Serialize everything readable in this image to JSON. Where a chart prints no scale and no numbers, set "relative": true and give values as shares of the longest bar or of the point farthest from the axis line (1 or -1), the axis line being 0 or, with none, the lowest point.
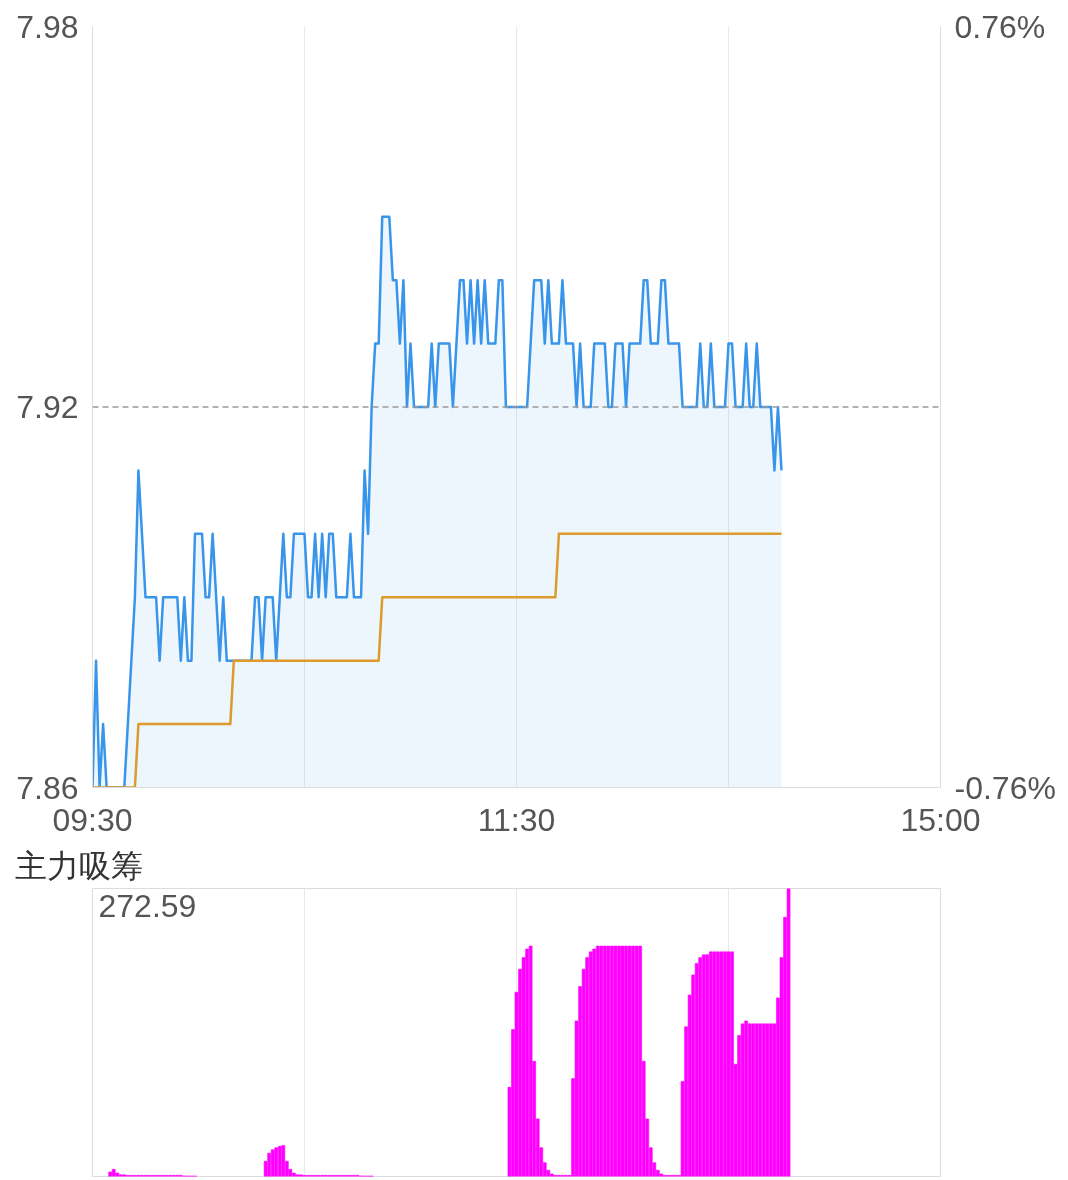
{
  "chart_data": [
    {
      "type": "area",
      "categories": [
        "09:30",
        null,
        null,
        null,
        null,
        null,
        null,
        null,
        null,
        null,
        null,
        null,
        null,
        null,
        null,
        null,
        null,
        null,
        null,
        null,
        null,
        null,
        null,
        null,
        null,
        null,
        null,
        null,
        null,
        null,
        null,
        null,
        null,
        null,
        null,
        null,
        null,
        null,
        null,
        null,
        null,
        null,
        null,
        null,
        null,
        null,
        null,
        null,
        null,
        null,
        null,
        null,
        null,
        null,
        null,
        null,
        null,
        null,
        null,
        null,
        null,
        null,
        null,
        null,
        null,
        null,
        null,
        null,
        null,
        null,
        null,
        null,
        null,
        null,
        null,
        null,
        null,
        null,
        null,
        null,
        null,
        null,
        null,
        null,
        null,
        null,
        null,
        null,
        null,
        null,
        null,
        null,
        null,
        null,
        null,
        null,
        null,
        null,
        null,
        null,
        null,
        null,
        null,
        null,
        null,
        null,
        null,
        null,
        null,
        null,
        null,
        null,
        null,
        null,
        null,
        null,
        null,
        null,
        null,
        null,
        "11:30",
        null,
        null,
        null,
        null,
        null,
        null,
        null,
        null,
        null,
        null,
        null,
        null,
        null,
        null,
        null,
        null,
        null,
        null,
        null,
        null,
        null,
        null,
        null,
        null,
        null,
        null,
        null,
        null,
        null,
        null,
        null,
        null,
        null,
        null,
        null,
        null,
        null,
        null,
        null,
        null,
        null,
        null,
        null,
        null,
        null,
        null,
        null,
        null,
        null,
        null,
        null,
        null,
        null,
        null,
        null,
        null,
        null,
        null,
        null,
        null,
        null,
        null,
        null,
        null,
        null,
        null,
        null,
        null,
        null,
        null,
        null,
        null,
        null,
        null,
        null,
        null,
        null,
        null,
        null,
        null,
        null,
        null,
        null,
        null,
        null,
        null,
        null,
        null,
        null,
        null,
        null,
        null,
        null,
        null,
        null,
        null,
        null,
        null,
        null,
        null,
        null,
        null,
        null,
        null,
        null,
        null,
        null,
        null,
        null,
        null,
        null,
        null,
        null,
        null,
        null,
        null,
        null,
        null,
        null,
        "15:00"
      ],
      "ylim": [
        7.86,
        7.98
      ],
      "yticks": [
        7.86,
        7.92,
        7.98
      ],
      "y2lim": [
        -0.76,
        0.76
      ],
      "y2ticks": [
        {
          "value": -0.76,
          "label": "-0.76%"
        },
        {
          "value": 0.76,
          "label": "0.76%"
        }
      ],
      "grid": true,
      "ref_lines": [
        {
          "axis": "y",
          "value": 7.92,
          "color": "#999999",
          "line_style": "dashed"
        }
      ],
      "series": [
        {
          "color": "#3895ea",
          "values": [
            7.86,
            7.88,
            7.86,
            7.87,
            7.86,
            7.86,
            7.86,
            7.86,
            7.86,
            7.86,
            7.87,
            7.88,
            7.89,
            7.91,
            7.9,
            7.89,
            7.89,
            7.89,
            7.89,
            7.88,
            7.89,
            7.89,
            7.89,
            7.89,
            7.89,
            7.88,
            7.89,
            7.88,
            7.88,
            7.9,
            7.9,
            7.9,
            7.89,
            7.89,
            7.9,
            7.89,
            7.88,
            7.89,
            7.88,
            7.88,
            7.88,
            7.88,
            7.88,
            7.88,
            7.88,
            7.88,
            7.89,
            7.89,
            7.88,
            7.89,
            7.89,
            7.89,
            7.88,
            7.89,
            7.9,
            7.89,
            7.89,
            7.9,
            7.9,
            7.9,
            7.9,
            7.89,
            7.89,
            7.9,
            7.89,
            7.9,
            7.89,
            7.9,
            7.9,
            7.89,
            7.89,
            7.89,
            7.89,
            7.9,
            7.89,
            7.89,
            7.89,
            7.91,
            7.9,
            7.92,
            7.93,
            7.93,
            7.95,
            7.95,
            7.95,
            7.94,
            7.94,
            7.93,
            7.94,
            7.92,
            7.93,
            7.92,
            7.92,
            7.92,
            7.92,
            7.92,
            7.93,
            7.92,
            7.93,
            7.93,
            7.93,
            7.93,
            7.92,
            7.93,
            7.94,
            7.94,
            7.93,
            7.94,
            7.93,
            7.94,
            7.93,
            7.94,
            7.93,
            7.93,
            7.93,
            7.94,
            7.94,
            7.92,
            7.92,
            7.92,
            7.92,
            7.92,
            7.92,
            7.92,
            7.93,
            7.94,
            7.94,
            7.94,
            7.93,
            7.94,
            7.93,
            7.93,
            7.93,
            7.94,
            7.93,
            7.93,
            7.93,
            7.92,
            7.93,
            7.92,
            7.92,
            7.92,
            7.93,
            7.93,
            7.93,
            7.93,
            7.92,
            7.92,
            7.93,
            7.93,
            7.93,
            7.92,
            7.93,
            7.93,
            7.93,
            7.93,
            7.94,
            7.94,
            7.93,
            7.93,
            7.93,
            7.94,
            7.94,
            7.93,
            7.93,
            7.93,
            7.93,
            7.92,
            7.92,
            7.92,
            7.92,
            7.92,
            7.93,
            7.92,
            7.92,
            7.93,
            7.92,
            7.92,
            7.92,
            7.92,
            7.93,
            7.93,
            7.92,
            7.92,
            7.92,
            7.93,
            7.92,
            7.92,
            7.93,
            7.92,
            7.92,
            7.92,
            7.92,
            7.91,
            7.92,
            7.91,
            null,
            null,
            null,
            null,
            null,
            null,
            null,
            null,
            null,
            null,
            null,
            null,
            null,
            null,
            null,
            null,
            null,
            null,
            null,
            null,
            null,
            null,
            null,
            null,
            null,
            null,
            null,
            null,
            null,
            null,
            null,
            null,
            null,
            null,
            null,
            null,
            null,
            null,
            null,
            null,
            null,
            null,
            null,
            null,
            null
          ]
        },
        {
          "type": "line",
          "color": "#dc9b2c",
          "values": [
            7.86,
            7.86,
            7.86,
            7.86,
            7.86,
            7.86,
            7.86,
            7.86,
            7.86,
            7.86,
            7.86,
            7.86,
            7.86,
            7.87,
            7.87,
            7.87,
            7.87,
            7.87,
            7.87,
            7.87,
            7.87,
            7.87,
            7.87,
            7.87,
            7.87,
            7.87,
            7.87,
            7.87,
            7.87,
            7.87,
            7.87,
            7.87,
            7.87,
            7.87,
            7.87,
            7.87,
            7.87,
            7.87,
            7.87,
            7.87,
            7.88,
            7.88,
            7.88,
            7.88,
            7.88,
            7.88,
            7.88,
            7.88,
            7.88,
            7.88,
            7.88,
            7.88,
            7.88,
            7.88,
            7.88,
            7.88,
            7.88,
            7.88,
            7.88,
            7.88,
            7.88,
            7.88,
            7.88,
            7.88,
            7.88,
            7.88,
            7.88,
            7.88,
            7.88,
            7.88,
            7.88,
            7.88,
            7.88,
            7.88,
            7.88,
            7.88,
            7.88,
            7.88,
            7.88,
            7.88,
            7.88,
            7.88,
            7.89,
            7.89,
            7.89,
            7.89,
            7.89,
            7.89,
            7.89,
            7.89,
            7.89,
            7.89,
            7.89,
            7.89,
            7.89,
            7.89,
            7.89,
            7.89,
            7.89,
            7.89,
            7.89,
            7.89,
            7.89,
            7.89,
            7.89,
            7.89,
            7.89,
            7.89,
            7.89,
            7.89,
            7.89,
            7.89,
            7.89,
            7.89,
            7.89,
            7.89,
            7.89,
            7.89,
            7.89,
            7.89,
            7.89,
            7.89,
            7.89,
            7.89,
            7.89,
            7.89,
            7.89,
            7.89,
            7.89,
            7.89,
            7.89,
            7.89,
            7.9,
            7.9,
            7.9,
            7.9,
            7.9,
            7.9,
            7.9,
            7.9,
            7.9,
            7.9,
            7.9,
            7.9,
            7.9,
            7.9,
            7.9,
            7.9,
            7.9,
            7.9,
            7.9,
            7.9,
            7.9,
            7.9,
            7.9,
            7.9,
            7.9,
            7.9,
            7.9,
            7.9,
            7.9,
            7.9,
            7.9,
            7.9,
            7.9,
            7.9,
            7.9,
            7.9,
            7.9,
            7.9,
            7.9,
            7.9,
            7.9,
            7.9,
            7.9,
            7.9,
            7.9,
            7.9,
            7.9,
            7.9,
            7.9,
            7.9,
            7.9,
            7.9,
            7.9,
            7.9,
            7.9,
            7.9,
            7.9,
            7.9,
            7.9,
            7.9,
            7.9,
            7.9,
            7.9,
            7.9,
            null,
            null,
            null,
            null,
            null,
            null,
            null,
            null,
            null,
            null,
            null,
            null,
            null,
            null,
            null,
            null,
            null,
            null,
            null,
            null,
            null,
            null,
            null,
            null,
            null,
            null,
            null,
            null,
            null,
            null,
            null,
            null,
            null,
            null,
            null,
            null,
            null,
            null,
            null,
            null,
            null,
            null,
            null,
            null,
            null
          ]
        }
      ]
    },
    {
      "type": "bar",
      "title": "主力吸筹",
      "relative": true,
      "categories": [
        null,
        null,
        null,
        null,
        null,
        null,
        null,
        null,
        null,
        null,
        null,
        null,
        null,
        null,
        null,
        null,
        null,
        null,
        null,
        null,
        null,
        null,
        null,
        null,
        null,
        null,
        null,
        null,
        null,
        null,
        null,
        null,
        null,
        null,
        null,
        null,
        null,
        null,
        null,
        null,
        null,
        null,
        null,
        null,
        null,
        null,
        null,
        null,
        null,
        null,
        null,
        null,
        null,
        null,
        null,
        null,
        null,
        null,
        null,
        null,
        null,
        null,
        null,
        null,
        null,
        null,
        null,
        null,
        null,
        null,
        null,
        null,
        null,
        null,
        null,
        null,
        null,
        null,
        null,
        null,
        null,
        null,
        null,
        null,
        null,
        null,
        null,
        null,
        null,
        null,
        null,
        null,
        null,
        null,
        null,
        null,
        null,
        null,
        null,
        null,
        null,
        null,
        null,
        null,
        null,
        null,
        null,
        null,
        null,
        null,
        null,
        null,
        null,
        null,
        null,
        null,
        null,
        null,
        null,
        null,
        null,
        null,
        null,
        null,
        null,
        null,
        null,
        null,
        null,
        null,
        null,
        null,
        null,
        null,
        null,
        null,
        null,
        null,
        null,
        null,
        null,
        null,
        null,
        null,
        null,
        null,
        null,
        null,
        null,
        null,
        null,
        null,
        null,
        null,
        null,
        null,
        null,
        null,
        null,
        null,
        null,
        null,
        null,
        null,
        null,
        null,
        null,
        null,
        null,
        null,
        null,
        null,
        null,
        null,
        null,
        null,
        null,
        null,
        null,
        null,
        null,
        null,
        null,
        null,
        null,
        null,
        null,
        null,
        null,
        null,
        null,
        null,
        null,
        null,
        null,
        null,
        null,
        null,
        null,
        null,
        null,
        null,
        null,
        null,
        null,
        null,
        null,
        null,
        null,
        null,
        null,
        null,
        null,
        null,
        null,
        null,
        null,
        null,
        null,
        null,
        null,
        null,
        null,
        null,
        null,
        null,
        null,
        null,
        null,
        null,
        null,
        null,
        null,
        null,
        null,
        null,
        null,
        null,
        null,
        null,
        null
      ],
      "tick_labels": false,
      "grid": "x",
      "annotations": [
        "272.59"
      ],
      "color": "#ff00ff",
      "values": [
        null,
        null,
        null,
        null,
        null,
        0.016,
        0.025,
        0.012,
        0.006,
        0.006,
        0.004,
        0.004,
        0.004,
        0.004,
        0.004,
        0.004,
        0.004,
        0.004,
        0.004,
        0.004,
        0.004,
        0.004,
        0.004,
        0.004,
        0.004,
        0.004,
        0.002,
        0.002,
        0.002,
        0.002,
        null,
        null,
        null,
        null,
        null,
        null,
        null,
        null,
        null,
        null,
        null,
        null,
        null,
        null,
        null,
        null,
        null,
        null,
        null,
        0.053,
        0.081,
        0.093,
        0.1,
        0.105,
        0.108,
        0.053,
        0.025,
        0.012,
        0.006,
        0.006,
        0.004,
        0.004,
        0.004,
        0.004,
        0.004,
        0.004,
        0.004,
        0.004,
        0.004,
        0.004,
        0.004,
        0.004,
        0.004,
        0.004,
        0.004,
        0.004,
        0.002,
        0.002,
        0.002,
        0.002,
        null,
        null,
        null,
        null,
        null,
        null,
        null,
        null,
        null,
        null,
        null,
        null,
        null,
        null,
        null,
        null,
        null,
        null,
        null,
        null,
        null,
        null,
        null,
        null,
        null,
        null,
        null,
        null,
        null,
        null,
        null,
        null,
        null,
        null,
        null,
        null,
        null,
        null,
        0.31,
        0.51,
        0.64,
        0.72,
        0.76,
        0.79,
        0.8,
        0.4,
        0.2,
        0.1,
        0.048,
        0.022,
        0.009,
        0.004,
        0.004,
        0.004,
        0.004,
        0.004,
        0.34,
        0.54,
        0.66,
        0.72,
        0.76,
        0.78,
        0.79,
        0.8,
        0.8,
        0.8,
        0.8,
        0.8,
        0.8,
        0.8,
        0.8,
        0.8,
        0.8,
        0.8,
        0.8,
        0.8,
        0.4,
        0.2,
        0.1,
        0.048,
        0.022,
        0.009,
        0.004,
        0.004,
        0.004,
        0.004,
        0.004,
        0.33,
        0.52,
        0.63,
        0.7,
        0.74,
        0.76,
        0.77,
        0.77,
        0.78,
        0.78,
        0.78,
        0.78,
        0.78,
        0.78,
        0.78,
        0.39,
        0.49,
        0.53,
        0.54,
        0.53,
        0.53,
        0.53,
        0.53,
        0.53,
        0.53,
        0.53,
        0.53,
        0.62,
        0.76,
        0.9,
        1,
        null,
        null,
        null,
        null,
        null,
        null,
        null,
        null,
        null,
        null,
        null,
        null,
        null,
        null,
        null,
        null,
        null,
        null,
        null,
        null,
        null,
        null,
        null,
        null,
        null,
        null,
        null,
        null,
        null,
        null,
        null,
        null,
        null,
        null,
        null,
        null,
        null,
        null,
        null,
        null,
        null,
        null,
        null
      ]
    }
  ]
}
